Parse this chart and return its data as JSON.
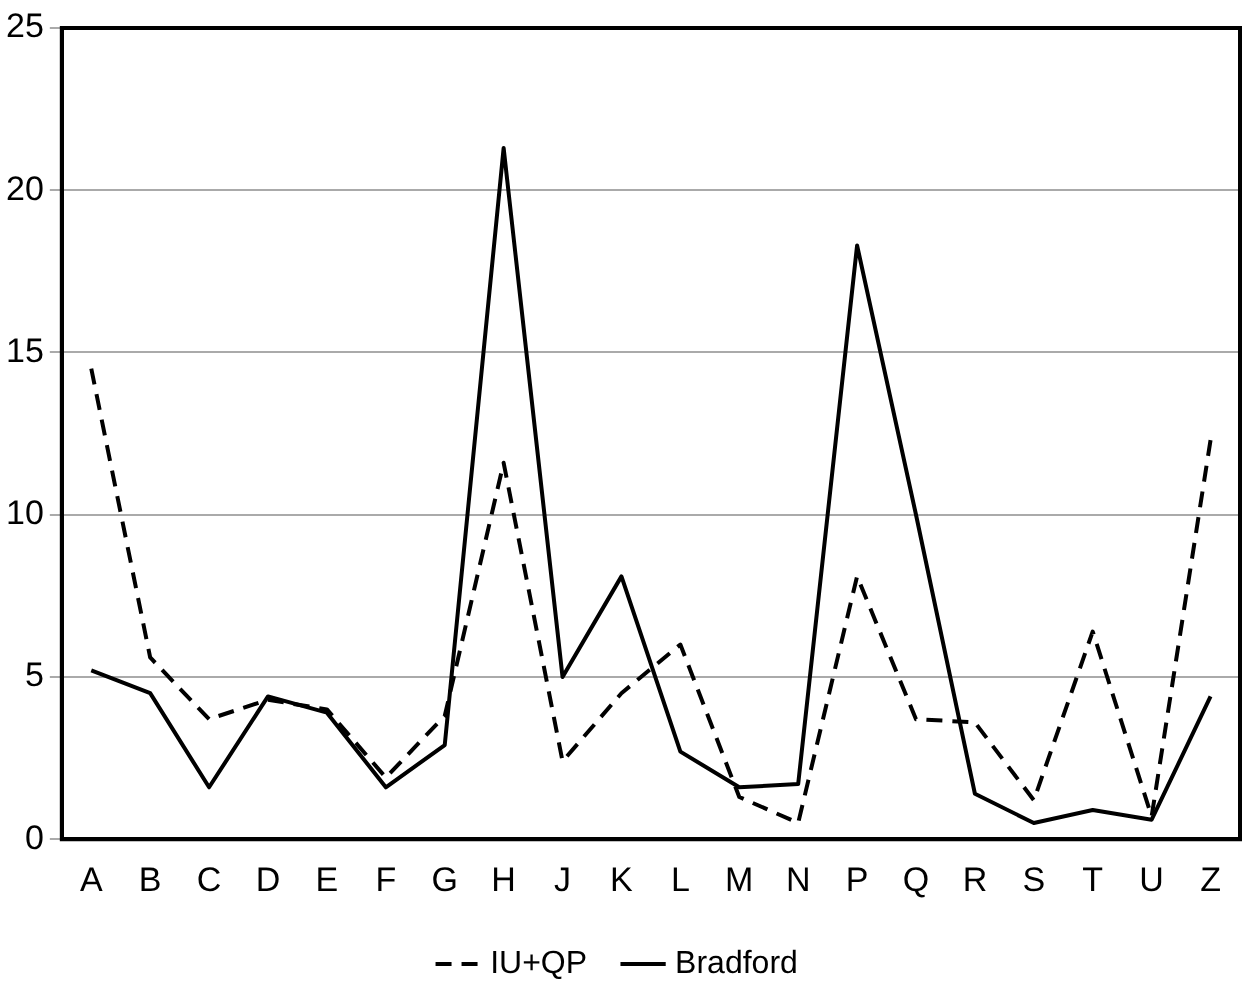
{
  "chart_data": {
    "type": "line",
    "categories": [
      "A",
      "B",
      "C",
      "D",
      "E",
      "F",
      "G",
      "H",
      "J",
      "K",
      "L",
      "M",
      "N",
      "P",
      "Q",
      "R",
      "S",
      "T",
      "U",
      "Z"
    ],
    "series": [
      {
        "name": "IU+QP",
        "color": "#000000",
        "line_style": "dashed",
        "values": [
          14.5,
          5.6,
          3.7,
          4.3,
          4.0,
          1.9,
          3.8,
          11.6,
          2.4,
          4.5,
          6.0,
          1.3,
          0.5,
          8.1,
          3.7,
          3.6,
          1.2,
          6.4,
          0.7,
          12.3
        ]
      },
      {
        "name": "Bradford",
        "color": "#000000",
        "line_style": "solid",
        "values": [
          5.2,
          4.5,
          1.6,
          4.4,
          3.9,
          1.6,
          2.9,
          21.3,
          5.0,
          8.1,
          2.7,
          1.6,
          1.7,
          18.3,
          10.0,
          1.4,
          0.5,
          0.9,
          0.6,
          4.4
        ]
      }
    ],
    "ylim": [
      0,
      25
    ],
    "yticks": [
      0,
      5,
      10,
      15,
      20,
      25
    ],
    "grid": "y",
    "legend": "bottom",
    "marker": "none"
  }
}
